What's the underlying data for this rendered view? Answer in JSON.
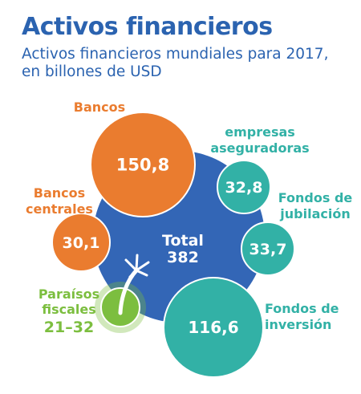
{
  "title": "Activos financieros",
  "subtitle_lines": [
    "Activos financieros mundiales para 2017,",
    "en billones de USD"
  ],
  "colors": {
    "title": "#2b63b0",
    "total": "#3366b6",
    "banks": "#ea7c2f",
    "others": "#32b1a6",
    "havens": "#7cbe3f"
  },
  "chart_data": {
    "type": "bubble",
    "total": {
      "label": "Total",
      "value": "382"
    },
    "items": [
      {
        "key": "bancos",
        "label_lines": [
          "Bancos"
        ],
        "value": "150,8",
        "group": "banks"
      },
      {
        "key": "empresas",
        "label_lines": [
          "empresas",
          "aseguradoras"
        ],
        "value": "32,8",
        "group": "others"
      },
      {
        "key": "bancos-centrales",
        "label_lines": [
          "Bancos",
          "centrales"
        ],
        "value": "30,1",
        "group": "banks"
      },
      {
        "key": "fondos-jubilacion",
        "label_lines": [
          "Fondos de",
          "jubilación"
        ],
        "value": "33,7",
        "group": "others"
      },
      {
        "key": "fondos-inversion",
        "label_lines": [
          "Fondos de",
          "inversión"
        ],
        "value": "116,6",
        "group": "others"
      },
      {
        "key": "paraisos",
        "label_lines": [
          "Paraísos",
          "fiscales"
        ],
        "value": "21–32",
        "group": "havens",
        "icon": "palm-tree-icon"
      }
    ]
  }
}
